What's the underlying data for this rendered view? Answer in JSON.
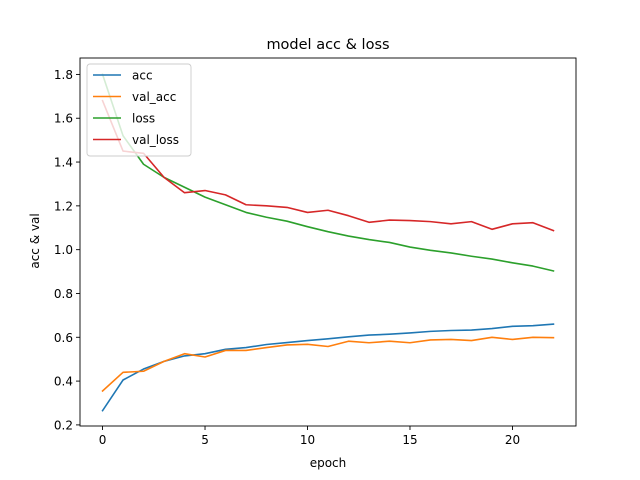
{
  "chart_data": {
    "type": "line",
    "title": "model acc & loss",
    "xlabel": "epoch",
    "ylabel": "acc & val",
    "xlim": [
      -1.1,
      23.1
    ],
    "ylim": [
      0.195,
      1.875
    ],
    "xticks": [
      0,
      5,
      10,
      15,
      20
    ],
    "yticks": [
      0.2,
      0.4,
      0.6,
      0.8,
      1.0,
      1.2,
      1.4,
      1.6,
      1.8
    ],
    "ytick_labels": [
      "0.2",
      "0.4",
      "0.6",
      "0.8",
      "1.0",
      "1.2",
      "1.4",
      "1.6",
      "1.8"
    ],
    "grid": false,
    "legend_position": "top-left",
    "x": [
      0,
      1,
      2,
      3,
      4,
      5,
      6,
      7,
      8,
      9,
      10,
      11,
      12,
      13,
      14,
      15,
      16,
      17,
      18,
      19,
      20,
      21,
      22
    ],
    "series": [
      {
        "name": "acc",
        "color": "#1f77b4",
        "values": [
          0.265,
          0.405,
          0.455,
          0.49,
          0.515,
          0.525,
          0.545,
          0.553,
          0.567,
          0.576,
          0.585,
          0.593,
          0.602,
          0.61,
          0.614,
          0.62,
          0.627,
          0.631,
          0.633,
          0.64,
          0.65,
          0.653,
          0.66
        ]
      },
      {
        "name": "val_acc",
        "color": "#ff7f0e",
        "values": [
          0.355,
          0.44,
          0.445,
          0.49,
          0.525,
          0.51,
          0.54,
          0.54,
          0.553,
          0.565,
          0.568,
          0.558,
          0.582,
          0.575,
          0.582,
          0.575,
          0.588,
          0.59,
          0.585,
          0.6,
          0.59,
          0.6,
          0.598
        ]
      },
      {
        "name": "loss",
        "color": "#2ca02c",
        "values": [
          1.8,
          1.52,
          1.39,
          1.33,
          1.285,
          1.24,
          1.205,
          1.17,
          1.148,
          1.13,
          1.105,
          1.082,
          1.062,
          1.046,
          1.033,
          1.012,
          0.997,
          0.985,
          0.97,
          0.957,
          0.94,
          0.925,
          0.903
        ]
      },
      {
        "name": "val_loss",
        "color": "#d62728",
        "values": [
          1.68,
          1.45,
          1.44,
          1.33,
          1.26,
          1.27,
          1.25,
          1.205,
          1.2,
          1.193,
          1.17,
          1.18,
          1.155,
          1.125,
          1.135,
          1.133,
          1.128,
          1.118,
          1.128,
          1.093,
          1.118,
          1.123,
          1.087
        ]
      }
    ]
  }
}
